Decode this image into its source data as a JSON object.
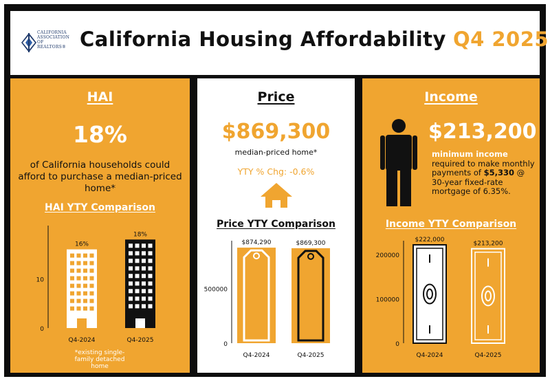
{
  "header": {
    "logo_text": "CALIFORNIA ASSOCIATION OF REALTORS®",
    "title": "California Housing Affordability",
    "quarter": "Q4 2025"
  },
  "hai": {
    "heading": "HAI",
    "value": "18%",
    "description": "of California households could afford to purchase a median-priced home*",
    "comparison_title": "HAI YTY Comparison",
    "footnote": "*existing single-family detached home"
  },
  "price": {
    "heading": "Price",
    "value": "$869,300",
    "caption": "median-priced home*",
    "yty_change": "YTY % Chg: -0.6%",
    "comparison_title": "Price YTY Comparison"
  },
  "income": {
    "heading": "Income",
    "value": "$213,200",
    "line1": "minimum income",
    "line2": "required to make monthly payments of",
    "payment": "$5,330",
    "line3": "@ 30-year fixed-rate mortgage of 6.35%.",
    "comparison_title": "Income YTY Comparison"
  },
  "colors": {
    "accent": "#f0a530",
    "dark": "#111111",
    "white": "#ffffff"
  },
  "chart_data": [
    {
      "type": "bar",
      "title": "HAI YTY Comparison",
      "categories": [
        "Q4-2024",
        "Q4-2025"
      ],
      "values": [
        16,
        18
      ],
      "data_labels": [
        "16%",
        "18%"
      ],
      "y_ticks": [
        "0",
        "10"
      ],
      "ylim": [
        0,
        20
      ]
    },
    {
      "type": "bar",
      "title": "Price YTY Comparison",
      "categories": [
        "Q4-2024",
        "Q4-2025"
      ],
      "values": [
        874290,
        869300
      ],
      "data_labels": [
        "$874,290",
        "$869,300"
      ],
      "y_ticks": [
        "0",
        "500000"
      ],
      "ylim": [
        0,
        900000
      ]
    },
    {
      "type": "bar",
      "title": "Income YTY Comparison",
      "categories": [
        "Q4-2024",
        "Q4-2025"
      ],
      "values": [
        222000,
        213200
      ],
      "data_labels": [
        "$222,000",
        "$213,200"
      ],
      "y_ticks": [
        "0",
        "100000",
        "200000"
      ],
      "ylim": [
        0,
        222000
      ]
    }
  ]
}
